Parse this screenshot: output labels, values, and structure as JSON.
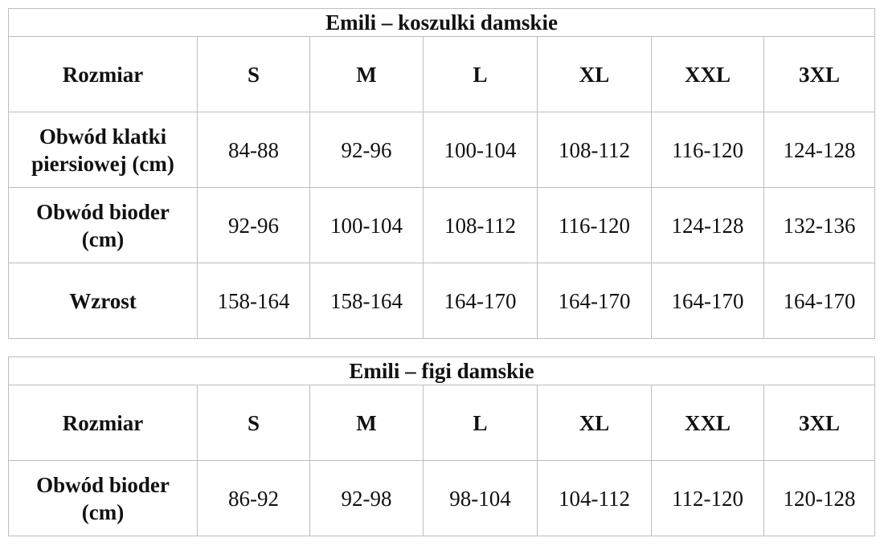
{
  "tables": [
    {
      "title": "Emili – koszulki damskie",
      "header": [
        "Rozmiar",
        "S",
        "M",
        "L",
        "XL",
        "XXL",
        "3XL"
      ],
      "rows": [
        {
          "label": "Obwód klatki piersiowej (cm)",
          "values": [
            "84-88",
            "92-96",
            "100-104",
            "108-112",
            "116-120",
            "124-128"
          ]
        },
        {
          "label": "Obwód bioder (cm)",
          "values": [
            "92-96",
            "100-104",
            "108-112",
            "116-120",
            "124-128",
            "132-136"
          ]
        },
        {
          "label": "Wzrost",
          "values": [
            "158-164",
            "158-164",
            "164-170",
            "164-170",
            "164-170",
            "164-170"
          ]
        }
      ]
    },
    {
      "title": "Emili – figi damskie",
      "header": [
        "Rozmiar",
        "S",
        "M",
        "L",
        "XL",
        "XXL",
        "3XL"
      ],
      "rows": [
        {
          "label": "Obwód bioder (cm)",
          "values": [
            "86-92",
            "92-98",
            "98-104",
            "104-112",
            "112-120",
            "120-128"
          ]
        }
      ]
    }
  ]
}
